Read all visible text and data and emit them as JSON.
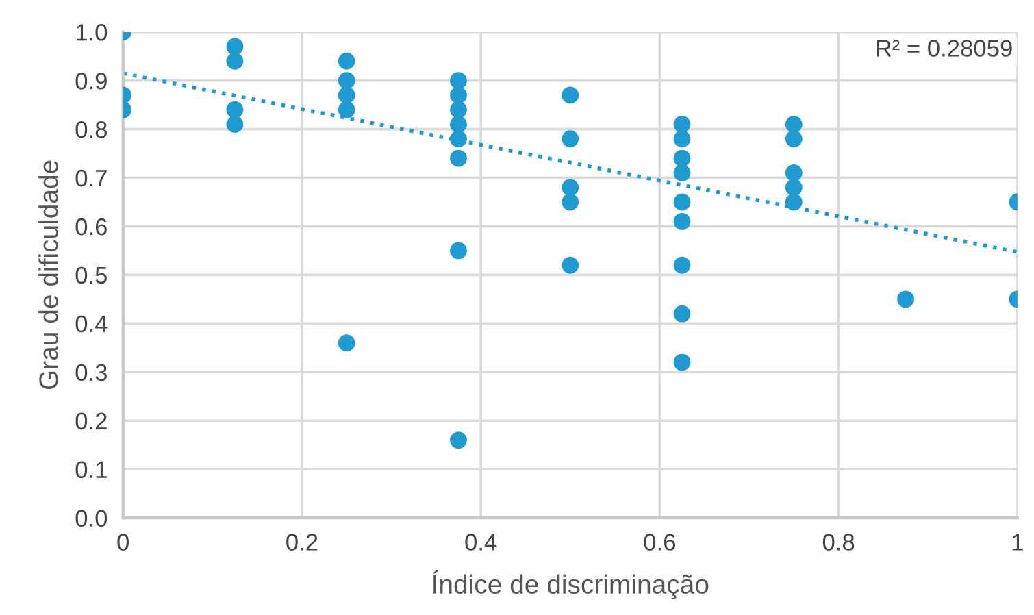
{
  "chart_data": {
    "type": "scatter",
    "xlabel": "Índice de discriminação",
    "ylabel": "Grau de dificuldade",
    "annotations": [
      "R² = 0.28059"
    ],
    "xlim": [
      0,
      1
    ],
    "xticks": [
      0,
      0.2,
      0.4,
      0.6,
      0.8,
      1
    ],
    "ylim": [
      0,
      1
    ],
    "yticks": [
      {
        "value": 0,
        "label": "0.0"
      },
      0.1,
      0.2,
      0.3,
      0.4,
      0.5,
      0.6,
      0.7,
      0.8,
      0.9,
      {
        "value": 1,
        "label": "1.0"
      }
    ],
    "grid": true,
    "legend": false,
    "series": [
      {
        "color": "#1f9bd1",
        "marker": "circle",
        "x": [
          0,
          0,
          0,
          0.125,
          0.125,
          0.125,
          0.125,
          0.25,
          0.25,
          0.25,
          0.25,
          0.25,
          0.375,
          0.375,
          0.375,
          0.375,
          0.375,
          0.375,
          0.375,
          0.375,
          0.5,
          0.5,
          0.5,
          0.5,
          0.5,
          0.625,
          0.625,
          0.625,
          0.625,
          0.625,
          0.625,
          0.625,
          0.625,
          0.625,
          0.75,
          0.75,
          0.75,
          0.75,
          0.75,
          0.875,
          1,
          1
        ],
        "values": [
          1.0,
          0.87,
          0.84,
          0.97,
          0.94,
          0.84,
          0.81,
          0.94,
          0.9,
          0.87,
          0.84,
          0.36,
          0.9,
          0.87,
          0.84,
          0.81,
          0.78,
          0.74,
          0.55,
          0.16,
          0.87,
          0.78,
          0.68,
          0.65,
          0.52,
          0.81,
          0.78,
          0.74,
          0.71,
          0.65,
          0.61,
          0.52,
          0.42,
          0.32,
          0.81,
          0.78,
          0.71,
          0.68,
          0.65,
          0.45,
          0.65,
          0.45
        ]
      },
      {
        "type": "line",
        "color": "#1f9bd1",
        "marker": "none",
        "line_style": "dotted",
        "x": [
          0,
          1
        ],
        "values": [
          0.915,
          0.547
        ]
      }
    ]
  }
}
